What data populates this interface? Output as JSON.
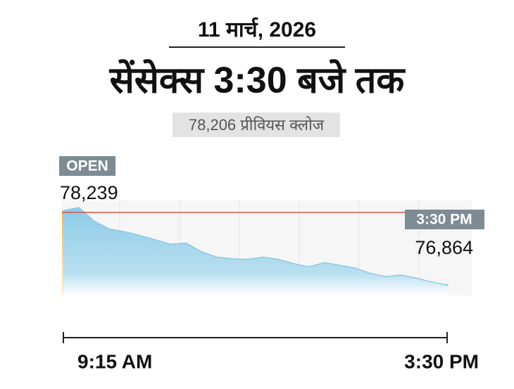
{
  "chart_data": {
    "type": "area",
    "date": "11 मार्च, 2026",
    "title": "सेंसेक्स 3:30 बजे तक",
    "subtitle": "78,206 प्रीवियस क्लोज",
    "previous_close": 78206,
    "open_tag": "OPEN",
    "open_value": {
      "value": 78239,
      "label": "78,239"
    },
    "close_tag": "3:30 PM",
    "close_value": {
      "value": 76864,
      "label": "76,864"
    },
    "x_start": "9:15 AM",
    "x_end": "3:30 PM",
    "color": "#8ccbe6",
    "line_color": "#d9534f",
    "values": [
      78239,
      78300,
      78050,
      77900,
      77850,
      77780,
      77700,
      77620,
      77640,
      77480,
      77380,
      77350,
      77340,
      77380,
      77340,
      77260,
      77200,
      77280,
      77230,
      77180,
      77080,
      77020,
      77050,
      76990,
      76920,
      76864
    ]
  }
}
